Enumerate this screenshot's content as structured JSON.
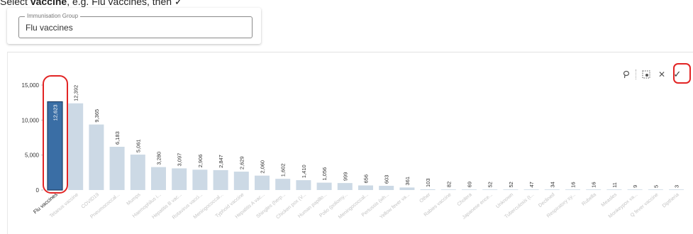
{
  "instruction": {
    "prefix": "Select ",
    "bold": "vaccine",
    "suffix": ", e.g. Flu vaccines, then ✓"
  },
  "immunisation_group": {
    "legend": "Immunisation Group",
    "value": "Flu vaccines"
  },
  "toolbar": {
    "icons": [
      "lasso-icon",
      "select-rect-icon",
      "close-icon",
      "confirm-check-icon"
    ],
    "close_glyph": "✕",
    "check_glyph": "✓"
  },
  "colors": {
    "selected_bar": "#3a6ea5",
    "selected_bar_border": "#1f3f66",
    "unselected_bar": "#ccd9e5",
    "annotation": "#e22424"
  },
  "chart_data": {
    "type": "bar",
    "ylim": [
      0,
      15000
    ],
    "yticks": [
      0,
      5000,
      10000,
      15000
    ],
    "ytick_labels": [
      "0",
      "5,000",
      "10,000",
      "15,000"
    ],
    "selected_index": 0,
    "categories": [
      "Flu vaccines",
      "Tetanus vaccine",
      "COVID19",
      "Pneumococcal...",
      "Mumps",
      "Haemophilus i...",
      "Hepatitis B vac...",
      "Rotavirus vacci...",
      "Meningococcal...",
      "Typhoid vaccine",
      "Hepatitis A vac...",
      "Shingles (herp...",
      "Chicken pox (V...",
      "Human papillo...",
      "Polio (poliomy...",
      "Meningococcal...",
      "Pertussis (wh...",
      "Yellow fever va...",
      "Other",
      "Rabies vaccine",
      "Cholera",
      "Japanese ence...",
      "Unknown",
      "Tuberculosis (t...",
      "Declined",
      "Respiratory sy...",
      "Rubella",
      "Measles",
      "Monkeypox va...",
      "Q fever vaccine",
      "Diptheria"
    ],
    "values": [
      12623,
      12392,
      9365,
      6183,
      5061,
      3280,
      3097,
      2906,
      2847,
      2629,
      2060,
      1602,
      1410,
      1056,
      999,
      656,
      603,
      361,
      103,
      82,
      69,
      52,
      52,
      47,
      34,
      16,
      16,
      11,
      9,
      5,
      3
    ],
    "value_labels": [
      "12,623",
      "12,392",
      "9,365",
      "6,183",
      "5,061",
      "3,280",
      "3,097",
      "2,906",
      "2,847",
      "2,629",
      "2,060",
      "1,602",
      "1,410",
      "1,056",
      "999",
      "656",
      "603",
      "361",
      "103",
      "82",
      "69",
      "52",
      "52",
      "47",
      "34",
      "16",
      "16",
      "11",
      "9",
      "5",
      "3"
    ]
  }
}
